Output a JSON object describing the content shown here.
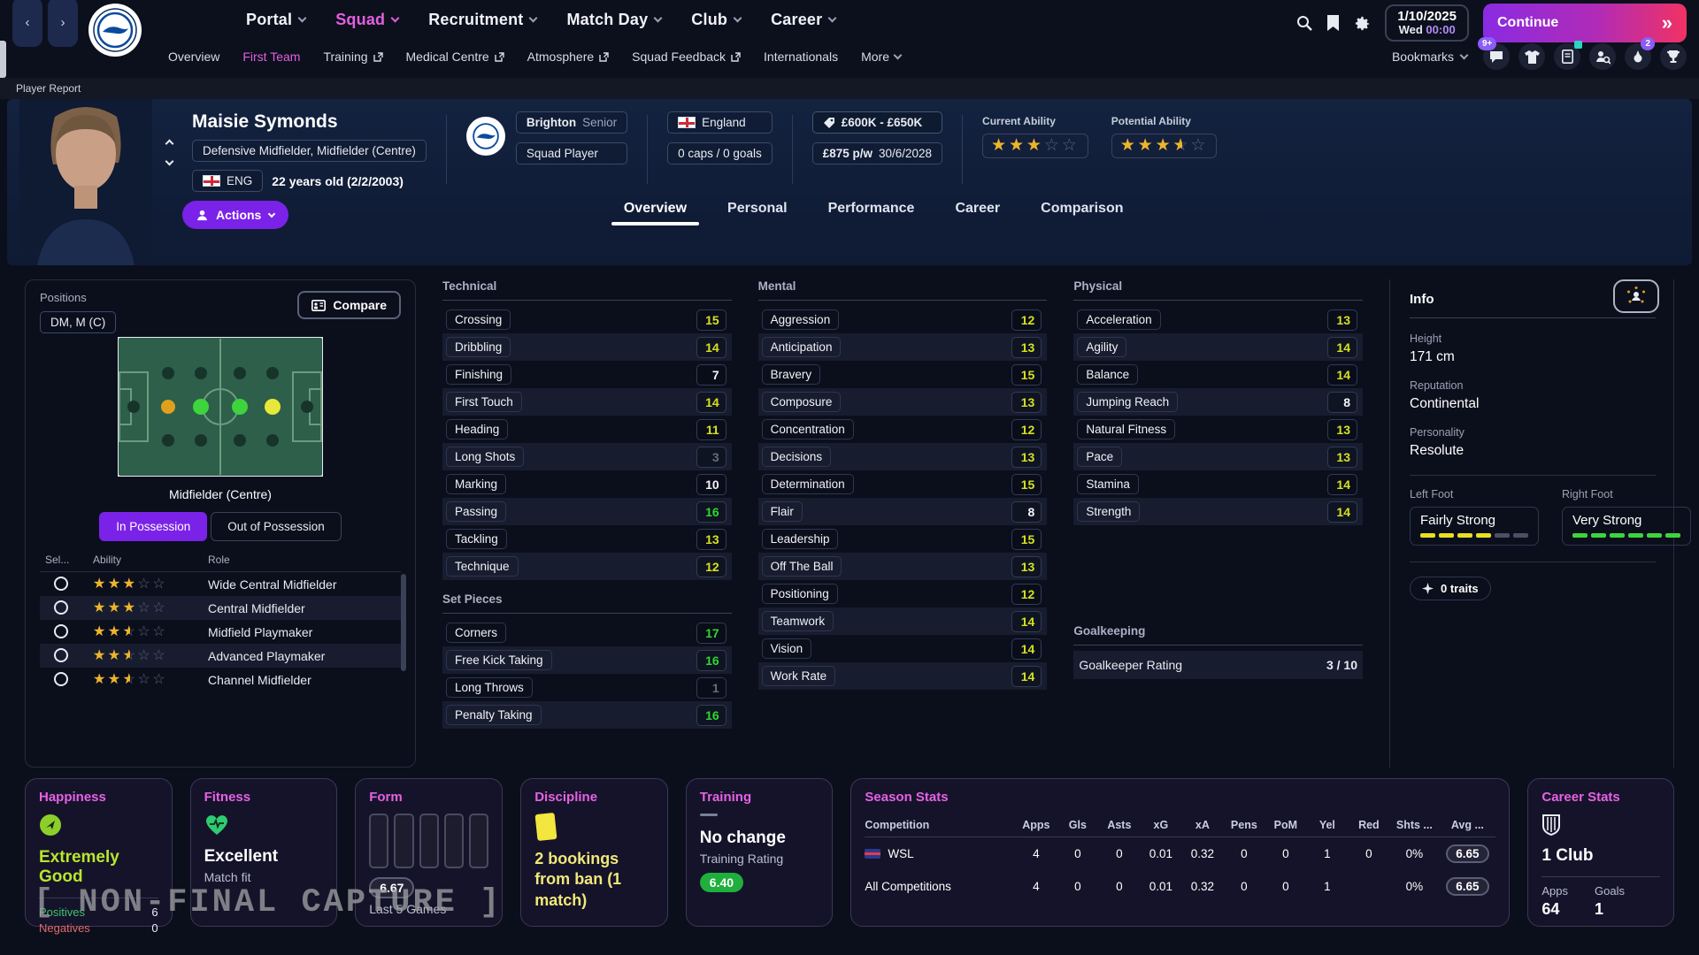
{
  "top_nav": {
    "menus": [
      "Portal",
      "Squad",
      "Recruitment",
      "Match Day",
      "Club",
      "Career"
    ],
    "active_menu": "Squad",
    "datebox": {
      "date": "1/10/2025",
      "day": "Wed",
      "time": "00:00"
    },
    "continue_label": "Continue",
    "continue_arrow": "»"
  },
  "sub_nav": {
    "items": [
      {
        "label": "Overview",
        "external": false,
        "active": false
      },
      {
        "label": "First Team",
        "external": false,
        "active": true
      },
      {
        "label": "Training",
        "external": true,
        "active": false
      },
      {
        "label": "Medical Centre",
        "external": true,
        "active": false
      },
      {
        "label": "Atmosphere",
        "external": true,
        "active": false
      },
      {
        "label": "Squad Feedback",
        "external": true,
        "active": false
      },
      {
        "label": "Internationals",
        "external": false,
        "active": false
      },
      {
        "label": "More",
        "external": false,
        "active": false,
        "dropdown": true
      }
    ],
    "bookmarks_label": "Bookmarks",
    "inbox_badge": "9+",
    "social_badge": "2"
  },
  "breadcrumb": "Player Report",
  "player": {
    "name": "Maisie Symonds",
    "position": "Defensive Midfielder, Midfielder (Centre)",
    "nationality_code": "ENG",
    "age_text": "22 years old (2/2/2003)",
    "club": "Brighton",
    "squad_level": "Senior",
    "status": "Squad Player",
    "nation": "England",
    "caps": "0 caps / 0 goals",
    "value": "£600K - £650K",
    "wage": "£875 p/w",
    "contract_end": "30/6/2028",
    "current_ability_label": "Current Ability",
    "potential_ability_label": "Potential Ability",
    "current_ability": 3,
    "potential_ability": 3.5,
    "actions_label": "Actions"
  },
  "tabs": {
    "items": [
      "Overview",
      "Personal",
      "Performance",
      "Career",
      "Comparison"
    ],
    "active": "Overview"
  },
  "positions_panel": {
    "title": "Positions",
    "chip": "DM, M (C)",
    "compare_label": "Compare",
    "pitch_caption": "Midfielder (Centre)",
    "toggle": [
      "In Possession",
      "Out of Possession"
    ],
    "toggle_active": "In Possession",
    "roles_header": [
      "Sel...",
      "Ability",
      "Role"
    ],
    "roles": [
      {
        "stars": 3,
        "role": "Wide Central Midfielder"
      },
      {
        "stars": 3,
        "role": "Central Midfielder"
      },
      {
        "stars": 2.5,
        "role": "Midfield Playmaker"
      },
      {
        "stars": 2.5,
        "role": "Advanced Playmaker"
      },
      {
        "stars": 2.5,
        "role": "Channel Midfielder"
      }
    ]
  },
  "attributes": {
    "technical": {
      "title": "Technical",
      "items": [
        [
          "Crossing",
          15
        ],
        [
          "Dribbling",
          14
        ],
        [
          "Finishing",
          7
        ],
        [
          "First Touch",
          14
        ],
        [
          "Heading",
          11
        ],
        [
          "Long Shots",
          3
        ],
        [
          "Marking",
          10
        ],
        [
          "Passing",
          16
        ],
        [
          "Tackling",
          13
        ],
        [
          "Technique",
          12
        ]
      ]
    },
    "set_pieces": {
      "title": "Set Pieces",
      "items": [
        [
          "Corners",
          17
        ],
        [
          "Free Kick Taking",
          16
        ],
        [
          "Long Throws",
          1
        ],
        [
          "Penalty Taking",
          16
        ]
      ]
    },
    "mental": {
      "title": "Mental",
      "items": [
        [
          "Aggression",
          12
        ],
        [
          "Anticipation",
          13
        ],
        [
          "Bravery",
          15
        ],
        [
          "Composure",
          13
        ],
        [
          "Concentration",
          12
        ],
        [
          "Decisions",
          13
        ],
        [
          "Determination",
          15
        ],
        [
          "Flair",
          8
        ],
        [
          "Leadership",
          15
        ],
        [
          "Off The Ball",
          13
        ],
        [
          "Positioning",
          12
        ],
        [
          "Teamwork",
          14
        ],
        [
          "Vision",
          14
        ],
        [
          "Work Rate",
          14
        ]
      ]
    },
    "physical": {
      "title": "Physical",
      "items": [
        [
          "Acceleration",
          13
        ],
        [
          "Agility",
          14
        ],
        [
          "Balance",
          14
        ],
        [
          "Jumping Reach",
          8
        ],
        [
          "Natural Fitness",
          13
        ],
        [
          "Pace",
          13
        ],
        [
          "Stamina",
          14
        ],
        [
          "Strength",
          14
        ]
      ]
    },
    "goalkeeping": {
      "title": "Goalkeeping",
      "rating_label": "Goalkeeper Rating",
      "rating_value": "3 / 10"
    }
  },
  "info_panel": {
    "title": "Info",
    "height_label": "Height",
    "height": "171 cm",
    "reputation_label": "Reputation",
    "reputation": "Continental",
    "personality_label": "Personality",
    "personality": "Resolute",
    "left_foot_label": "Left Foot",
    "left_foot": "Fairly Strong",
    "left_foot_filled": 4,
    "right_foot_label": "Right Foot",
    "right_foot": "Very Strong",
    "right_foot_filled": 6,
    "foot_segments_total": 6,
    "left_foot_color": "#e8e020",
    "right_foot_color": "#3ed43e",
    "traits_label": "0 traits"
  },
  "cards": {
    "happiness": {
      "title": "Happiness",
      "value": "Extremely Good",
      "positives_label": "Positives",
      "positives": "6",
      "negatives_label": "Negatives",
      "negatives": "0"
    },
    "fitness": {
      "title": "Fitness",
      "value": "Excellent",
      "sub": "Match fit"
    },
    "form": {
      "title": "Form",
      "bars": 5,
      "rating": "6.67",
      "sub": "Last 5 Games"
    },
    "discipline": {
      "title": "Discipline",
      "text": "2 bookings from ban (1 match)"
    },
    "training": {
      "title": "Training",
      "value": "No change",
      "sub": "Training Rating",
      "rating": "6.40"
    },
    "season_stats": {
      "title": "Season Stats",
      "columns": [
        "Competition",
        "Apps",
        "Gls",
        "Asts",
        "xG",
        "xA",
        "Pens",
        "PoM",
        "Yel",
        "Red",
        "Shts ...",
        "Avg ..."
      ],
      "rows": [
        {
          "competition": "WSL",
          "icon": "wsl",
          "values": [
            "4",
            "0",
            "0",
            "0.01",
            "0.32",
            "0",
            "0",
            "1",
            "0",
            "0%"
          ],
          "avg": "6.65"
        },
        {
          "competition": "All Competitions",
          "icon": null,
          "values": [
            "4",
            "0",
            "0",
            "0.01",
            "0.32",
            "0",
            "0",
            "1",
            "",
            "0%"
          ],
          "avg": "6.65"
        }
      ]
    },
    "career_stats": {
      "title": "Career Stats",
      "clubs": "1 Club",
      "apps_label": "Apps",
      "apps": "64",
      "goals_label": "Goals",
      "goals": "1"
    }
  },
  "watermark": "[ NON-FINAL CAPTURE ]",
  "colors": {
    "accent_pink": "#e661e6",
    "accent_purple": "#7b22e8",
    "attr_green": "#30d530",
    "attr_yellow": "#d6e021"
  }
}
